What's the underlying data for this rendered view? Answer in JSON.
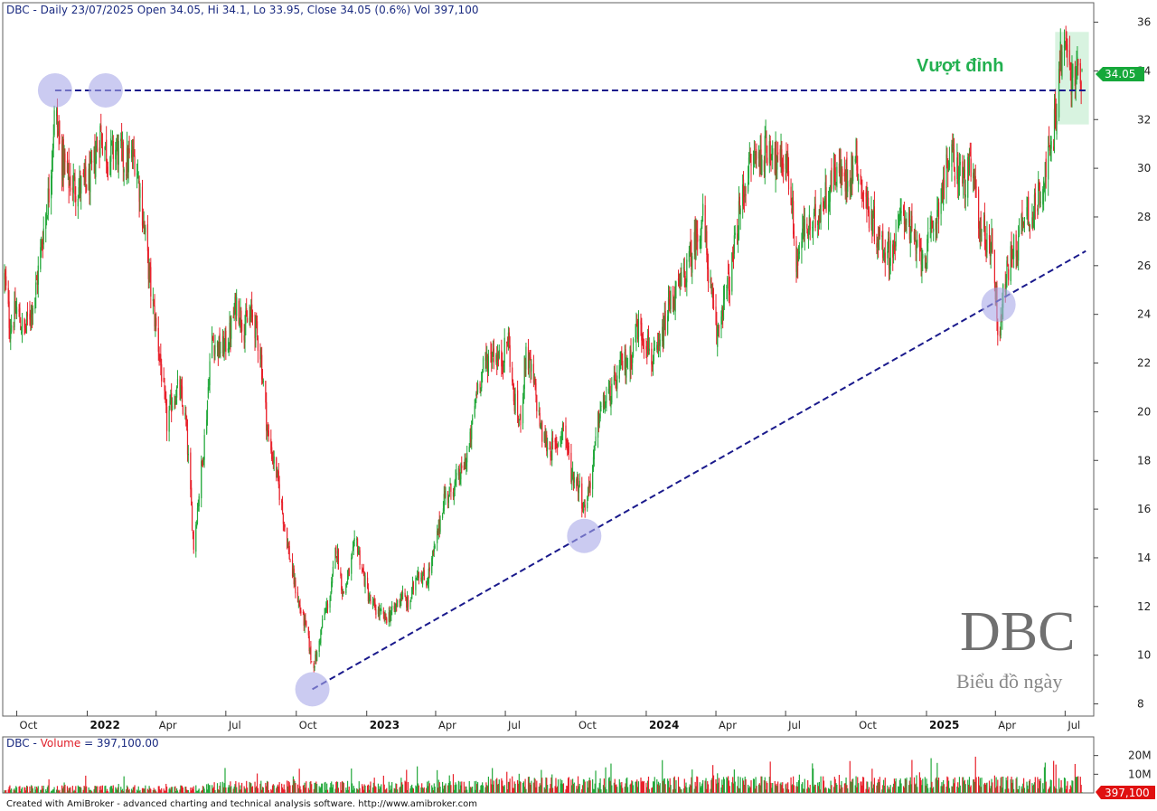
{
  "header": {
    "ticker": "DBC",
    "price_info": "DBC - Daily 23/07/2025 Open 34.05, Hi 34.1, Lo 33.95, Close 34.05 (0.6%) Vol 397,100",
    "volume_info_prefix": "DBC - ",
    "volume_info_label": "Volume",
    "volume_info_value": " = 397,100.00"
  },
  "annotation": {
    "breakout_text": "Vượt đỉnh"
  },
  "watermark": {
    "ticker": "DBC",
    "subtitle": "Biểu đồ ngày"
  },
  "footer": {
    "credit": "Created with AmiBroker - advanced charting and technical analysis software. http://www.amibroker.com"
  },
  "last_price_badge": "34.05",
  "last_volume_badge": "397,100",
  "colors": {
    "up": "#22a83a",
    "down": "#e8202a",
    "trend": "#1a1a8c",
    "highlight": "#d8f3e0",
    "circle": "#a8a8e8",
    "badge": "#16a83a",
    "vol_badge": "#e01010"
  },
  "chart_data": {
    "type": "candlestick",
    "title": "DBC - Daily 23/07/2025",
    "ylim": [
      7.5,
      36.8
    ],
    "yticks": [
      8,
      10,
      12,
      14,
      16,
      18,
      20,
      22,
      24,
      26,
      28,
      30,
      32,
      34,
      36
    ],
    "xlim": [
      "2021-09-15",
      "2025-08-05"
    ],
    "xticks": [
      {
        "date": "2021-10-01",
        "label": "Oct",
        "year": false
      },
      {
        "date": "2022-01-01",
        "label": "2022",
        "year": true
      },
      {
        "date": "2022-04-01",
        "label": "Apr",
        "year": false
      },
      {
        "date": "2022-07-01",
        "label": "Jul",
        "year": false
      },
      {
        "date": "2022-10-01",
        "label": "Oct",
        "year": false
      },
      {
        "date": "2023-01-01",
        "label": "2023",
        "year": true
      },
      {
        "date": "2023-04-01",
        "label": "Apr",
        "year": false
      },
      {
        "date": "2023-07-01",
        "label": "Jul",
        "year": false
      },
      {
        "date": "2023-10-01",
        "label": "Oct",
        "year": false
      },
      {
        "date": "2024-01-01",
        "label": "2024",
        "year": true
      },
      {
        "date": "2024-04-01",
        "label": "Apr",
        "year": false
      },
      {
        "date": "2024-07-01",
        "label": "Jul",
        "year": false
      },
      {
        "date": "2024-10-01",
        "label": "Oct",
        "year": false
      },
      {
        "date": "2025-01-01",
        "label": "2025",
        "year": true
      },
      {
        "date": "2025-04-01",
        "label": "Apr",
        "year": false
      },
      {
        "date": "2025-07-01",
        "label": "Jul",
        "year": false
      }
    ],
    "price_path": [
      [
        "2021-09-15",
        25.5
      ],
      [
        "2021-09-22",
        23.5
      ],
      [
        "2021-10-01",
        24.2
      ],
      [
        "2021-10-10",
        23.2
      ],
      [
        "2021-10-25",
        24.8
      ],
      [
        "2021-11-05",
        27.5
      ],
      [
        "2021-11-12",
        29.0
      ],
      [
        "2021-11-20",
        32.5
      ],
      [
        "2021-11-28",
        30.5
      ],
      [
        "2021-12-08",
        29.5
      ],
      [
        "2021-12-20",
        29.2
      ],
      [
        "2022-01-05",
        29.5
      ],
      [
        "2022-01-18",
        31.5
      ],
      [
        "2022-01-28",
        30.5
      ],
      [
        "2022-02-08",
        30.8
      ],
      [
        "2022-02-20",
        30.2
      ],
      [
        "2022-03-05",
        30.5
      ],
      [
        "2022-03-15",
        28.0
      ],
      [
        "2022-03-25",
        25.0
      ],
      [
        "2022-04-05",
        22.5
      ],
      [
        "2022-04-15",
        19.5
      ],
      [
        "2022-04-22",
        20.5
      ],
      [
        "2022-05-01",
        21.0
      ],
      [
        "2022-05-10",
        19.5
      ],
      [
        "2022-05-20",
        14.5
      ],
      [
        "2022-05-28",
        17.0
      ],
      [
        "2022-06-05",
        19.5
      ],
      [
        "2022-06-12",
        23.0
      ],
      [
        "2022-06-25",
        22.5
      ],
      [
        "2022-07-05",
        23.0
      ],
      [
        "2022-07-15",
        24.5
      ],
      [
        "2022-07-25",
        23.5
      ],
      [
        "2022-08-05",
        24.0
      ],
      [
        "2022-08-15",
        22.5
      ],
      [
        "2022-08-25",
        19.0
      ],
      [
        "2022-09-05",
        17.5
      ],
      [
        "2022-09-15",
        15.5
      ],
      [
        "2022-09-25",
        13.5
      ],
      [
        "2022-10-05",
        12.0
      ],
      [
        "2022-10-15",
        11.0
      ],
      [
        "2022-10-22",
        9.5
      ],
      [
        "2022-10-28",
        10.0
      ],
      [
        "2022-11-05",
        11.5
      ],
      [
        "2022-11-15",
        12.5
      ],
      [
        "2022-11-22",
        14.5
      ],
      [
        "2022-12-01",
        12.5
      ],
      [
        "2022-12-10",
        13.5
      ],
      [
        "2022-12-18",
        14.8
      ],
      [
        "2022-12-26",
        13.5
      ],
      [
        "2023-01-05",
        12.2
      ],
      [
        "2023-01-15",
        11.8
      ],
      [
        "2023-01-25",
        11.5
      ],
      [
        "2023-02-05",
        11.8
      ],
      [
        "2023-02-15",
        12.5
      ],
      [
        "2023-02-25",
        12.0
      ],
      [
        "2023-03-08",
        13.5
      ],
      [
        "2023-03-20",
        13.0
      ],
      [
        "2023-04-01",
        14.5
      ],
      [
        "2023-04-12",
        16.5
      ],
      [
        "2023-04-22",
        16.8
      ],
      [
        "2023-05-05",
        17.5
      ],
      [
        "2023-05-15",
        18.5
      ],
      [
        "2023-05-25",
        21.0
      ],
      [
        "2023-06-05",
        22.0
      ],
      [
        "2023-06-15",
        22.5
      ],
      [
        "2023-06-25",
        22.0
      ],
      [
        "2023-07-05",
        23.0
      ],
      [
        "2023-07-12",
        20.5
      ],
      [
        "2023-07-20",
        19.5
      ],
      [
        "2023-07-28",
        22.5
      ],
      [
        "2023-08-08",
        21.0
      ],
      [
        "2023-08-18",
        19.0
      ],
      [
        "2023-08-28",
        18.5
      ],
      [
        "2023-09-05",
        18.5
      ],
      [
        "2023-09-15",
        19.5
      ],
      [
        "2023-09-25",
        17.5
      ],
      [
        "2023-10-05",
        17.0
      ],
      [
        "2023-10-12",
        16.0
      ],
      [
        "2023-10-22",
        17.5
      ],
      [
        "2023-11-01",
        20.0
      ],
      [
        "2023-11-10",
        20.5
      ],
      [
        "2023-11-20",
        21.0
      ],
      [
        "2023-12-01",
        22.0
      ],
      [
        "2023-12-10",
        22.0
      ],
      [
        "2023-12-20",
        23.5
      ],
      [
        "2024-01-01",
        23.0
      ],
      [
        "2024-01-10",
        22.0
      ],
      [
        "2024-01-18",
        22.5
      ],
      [
        "2024-02-01",
        24.5
      ],
      [
        "2024-02-12",
        25.0
      ],
      [
        "2024-02-25",
        26.0
      ],
      [
        "2024-03-05",
        27.0
      ],
      [
        "2024-03-15",
        28.0
      ],
      [
        "2024-03-25",
        25.0
      ],
      [
        "2024-04-02",
        23.0
      ],
      [
        "2024-04-10",
        24.5
      ],
      [
        "2024-04-20",
        25.5
      ],
      [
        "2024-05-01",
        28.0
      ],
      [
        "2024-05-10",
        29.5
      ],
      [
        "2024-05-20",
        30.5
      ],
      [
        "2024-06-01",
        30.5
      ],
      [
        "2024-06-12",
        31.0
      ],
      [
        "2024-06-22",
        30.0
      ],
      [
        "2024-07-01",
        30.5
      ],
      [
        "2024-07-08",
        29.0
      ],
      [
        "2024-07-15",
        26.0
      ],
      [
        "2024-07-25",
        27.5
      ],
      [
        "2024-08-05",
        27.5
      ],
      [
        "2024-08-15",
        28.5
      ],
      [
        "2024-08-25",
        29.0
      ],
      [
        "2024-09-05",
        30.0
      ],
      [
        "2024-09-15",
        29.5
      ],
      [
        "2024-09-25",
        30.0
      ],
      [
        "2024-10-01",
        30.5
      ],
      [
        "2024-10-10",
        29.0
      ],
      [
        "2024-10-20",
        28.0
      ],
      [
        "2024-11-01",
        27.0
      ],
      [
        "2024-11-12",
        26.5
      ],
      [
        "2024-11-22",
        27.0
      ],
      [
        "2024-12-01",
        28.5
      ],
      [
        "2024-12-10",
        27.5
      ],
      [
        "2024-12-20",
        26.5
      ],
      [
        "2025-01-01",
        26.5
      ],
      [
        "2025-01-10",
        27.5
      ],
      [
        "2025-01-20",
        29.0
      ],
      [
        "2025-02-01",
        30.5
      ],
      [
        "2025-02-10",
        30.0
      ],
      [
        "2025-02-20",
        29.5
      ],
      [
        "2025-03-01",
        30.0
      ],
      [
        "2025-03-10",
        28.0
      ],
      [
        "2025-03-20",
        27.0
      ],
      [
        "2025-03-28",
        27.0
      ],
      [
        "2025-04-05",
        23.0
      ],
      [
        "2025-04-12",
        25.0
      ],
      [
        "2025-04-22",
        26.5
      ],
      [
        "2025-05-01",
        27.0
      ],
      [
        "2025-05-10",
        28.5
      ],
      [
        "2025-05-20",
        28.0
      ],
      [
        "2025-05-28",
        29.0
      ],
      [
        "2025-06-05",
        30.0
      ],
      [
        "2025-06-12",
        30.5
      ],
      [
        "2025-06-18",
        32.0
      ],
      [
        "2025-06-25",
        34.5
      ],
      [
        "2025-07-02",
        35.0
      ],
      [
        "2025-07-10",
        33.5
      ],
      [
        "2025-07-17",
        34.0
      ],
      [
        "2025-07-23",
        34.05
      ]
    ],
    "last_candle": {
      "date": "2025-07-23",
      "open": 34.05,
      "high": 34.1,
      "low": 33.95,
      "close": 34.05,
      "change_pct": 0.6,
      "volume": 397100
    },
    "resistance_line": {
      "price": 33.2,
      "from": "2021-11-20",
      "to": "2025-07-28"
    },
    "support_trendline": {
      "from": [
        "2022-10-22",
        8.6
      ],
      "to": [
        "2025-07-28",
        26.6
      ]
    },
    "touch_points": [
      {
        "date": "2021-11-20",
        "price": 33.2
      },
      {
        "date": "2022-01-25",
        "price": 33.2
      },
      {
        "date": "2022-10-22",
        "price": 8.6
      },
      {
        "date": "2023-10-12",
        "price": 14.9
      },
      {
        "date": "2025-04-05",
        "price": 24.4
      }
    ],
    "breakout_zone": {
      "from": "2025-06-18",
      "to": "2025-08-01",
      "price_low": 31.8,
      "price_high": 35.6
    },
    "volume_panel": {
      "label": "Volume",
      "ylim": [
        0,
        30000000
      ],
      "yticks": [
        {
          "value": 20000000,
          "label": "20M"
        },
        {
          "value": 10000000,
          "label": "10M"
        }
      ]
    }
  }
}
